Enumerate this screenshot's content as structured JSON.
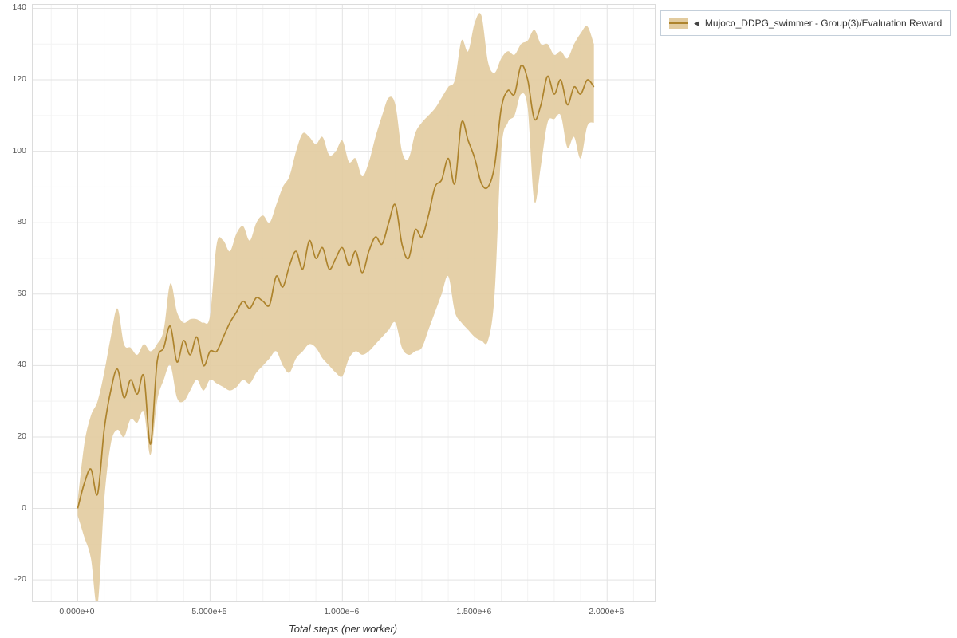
{
  "legend": {
    "toggle_icon": "◀",
    "label": "Mujoco_DDPG_swimmer - Group(3)/Evaluation Reward"
  },
  "colors": {
    "line": "#ad832c",
    "band": "#e2cb9e",
    "grid_major": "#e3e3e3",
    "grid_minor": "#f3f3f3",
    "plot_border": "#dcdcdc"
  },
  "chart_data": {
    "type": "line",
    "title": "",
    "xlabel": "Total steps (per worker)",
    "ylabel": "",
    "xlim": [
      -170000,
      2180000
    ],
    "ylim": [
      -26,
      141
    ],
    "grid": true,
    "legend_position": "top-right",
    "x_tick_values": [
      0,
      500000,
      1000000,
      1500000,
      2000000
    ],
    "x_tick_labels": [
      "0.000e+0",
      "5.000e+5",
      "1.000e+6",
      "1.500e+6",
      "2.000e+6"
    ],
    "y_tick_values": [
      -20,
      0,
      20,
      40,
      60,
      80,
      100,
      120,
      140
    ],
    "x_minor_step": 100000,
    "y_minor_step": 10,
    "series": [
      {
        "name": "Mujoco_DDPG_swimmer - Group(3)/Evaluation Reward",
        "x": [
          0,
          25000,
          50000,
          75000,
          100000,
          125000,
          150000,
          175000,
          200000,
          225000,
          250000,
          275000,
          300000,
          325000,
          350000,
          375000,
          400000,
          425000,
          450000,
          475000,
          500000,
          525000,
          550000,
          575000,
          600000,
          625000,
          650000,
          675000,
          700000,
          725000,
          750000,
          775000,
          800000,
          825000,
          850000,
          875000,
          900000,
          925000,
          950000,
          975000,
          1000000,
          1025000,
          1050000,
          1075000,
          1100000,
          1125000,
          1150000,
          1175000,
          1200000,
          1225000,
          1250000,
          1275000,
          1300000,
          1325000,
          1350000,
          1375000,
          1400000,
          1425000,
          1450000,
          1475000,
          1500000,
          1525000,
          1550000,
          1575000,
          1600000,
          1625000,
          1650000,
          1675000,
          1700000,
          1725000,
          1750000,
          1775000,
          1800000,
          1825000,
          1850000,
          1875000,
          1900000,
          1925000,
          1950000
        ],
        "mean": [
          0,
          7,
          11,
          4,
          22,
          33,
          39,
          31,
          36,
          32,
          37,
          18,
          41,
          45,
          51,
          41,
          47,
          43,
          48,
          40,
          44,
          44,
          48,
          52,
          55,
          58,
          56,
          59,
          58,
          57,
          65,
          62,
          68,
          72,
          67,
          75,
          70,
          73,
          67,
          70,
          73,
          68,
          72,
          66,
          72,
          76,
          74,
          80,
          85,
          74,
          70,
          78,
          76,
          82,
          90,
          92,
          98,
          91,
          108,
          103,
          98,
          91,
          90,
          96,
          112,
          117,
          116,
          124,
          120,
          109,
          113,
          121,
          116,
          120,
          113,
          118,
          116,
          120,
          118
        ],
        "lower": [
          -2,
          -8,
          -14,
          -27,
          2,
          18,
          22,
          20,
          25,
          24,
          27,
          15,
          30,
          36,
          40,
          31,
          30,
          33,
          36,
          33,
          36,
          35,
          34,
          33,
          34,
          36,
          35,
          38,
          40,
          42,
          44,
          40,
          38,
          42,
          44,
          46,
          45,
          42,
          40,
          38,
          37,
          42,
          44,
          43,
          44,
          46,
          48,
          50,
          52,
          45,
          43,
          44,
          45,
          50,
          55,
          60,
          65,
          55,
          52,
          50,
          48,
          47,
          47,
          60,
          100,
          108,
          110,
          116,
          112,
          86,
          96,
          108,
          109,
          110,
          101,
          104,
          98,
          107,
          108
        ],
        "upper": [
          2,
          18,
          26,
          30,
          38,
          48,
          56,
          46,
          45,
          43,
          46,
          44,
          46,
          50,
          63,
          55,
          52,
          53,
          53,
          52,
          54,
          74,
          75,
          72,
          77,
          79,
          75,
          80,
          82,
          80,
          85,
          90,
          93,
          100,
          105,
          104,
          102,
          104,
          99,
          100,
          103,
          97,
          98,
          93,
          97,
          104,
          110,
          115,
          113,
          100,
          98,
          105,
          108,
          110,
          112,
          115,
          118,
          120,
          131,
          128,
          136,
          138,
          125,
          122,
          126,
          128,
          127,
          130,
          131,
          134,
          130,
          130,
          127,
          128,
          126,
          130,
          133,
          135,
          130
        ]
      }
    ]
  }
}
